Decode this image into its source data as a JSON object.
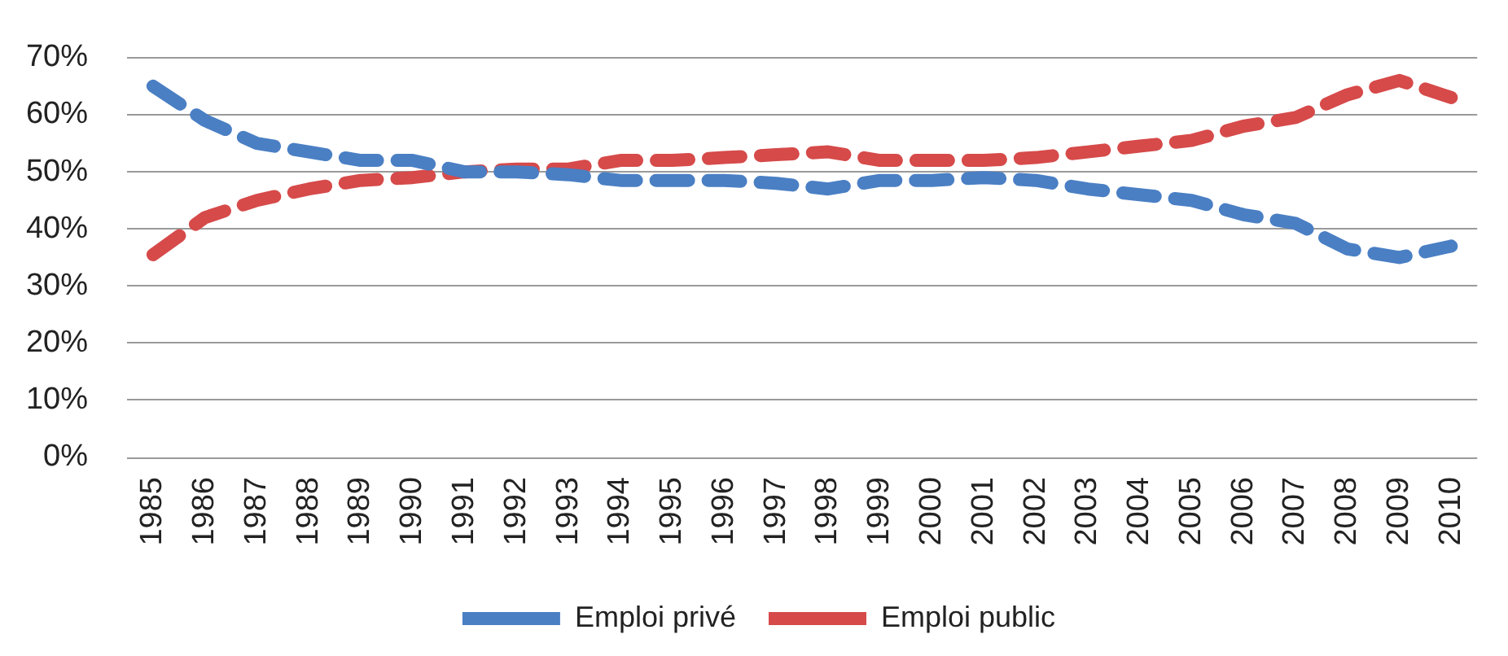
{
  "chart_data": {
    "type": "line",
    "categories": [
      "1985",
      "1986",
      "1987",
      "1988",
      "1989",
      "1990",
      "1991",
      "1992",
      "1993",
      "1994",
      "1995",
      "1996",
      "1997",
      "1998",
      "1999",
      "2000",
      "2001",
      "2002",
      "2003",
      "2004",
      "2005",
      "2006",
      "2007",
      "2008",
      "2009",
      "2010"
    ],
    "series": [
      {
        "name": "Emploi privé",
        "color": "#4a7fc4",
        "values": [
          65,
          59,
          55,
          53.5,
          52,
          52,
          50,
          50,
          49.5,
          48.5,
          48.5,
          48.5,
          48,
          47,
          48.5,
          48.5,
          49,
          48.5,
          47,
          46,
          45,
          42.5,
          41,
          36.5,
          35,
          37
        ]
      },
      {
        "name": "Emploi public",
        "color": "#d64a4a",
        "values": [
          35.5,
          42,
          45,
          47,
          48.5,
          49,
          50,
          50.5,
          50.5,
          52,
          52,
          52.5,
          53,
          53.5,
          52,
          52,
          52,
          52.5,
          53.5,
          54.5,
          55.5,
          58,
          59.5,
          63.5,
          66,
          63
        ]
      }
    ],
    "ylim": [
      0,
      70
    ],
    "yticks": [
      {
        "value": 0,
        "label": "0%"
      },
      {
        "value": 10,
        "label": "10%"
      },
      {
        "value": 20,
        "label": "20%"
      },
      {
        "value": 30,
        "label": "30%"
      },
      {
        "value": 40,
        "label": "40%"
      },
      {
        "value": 50,
        "label": "50%"
      },
      {
        "value": 60,
        "label": "60%"
      },
      {
        "value": 70,
        "label": "70%"
      }
    ],
    "grid": "y",
    "legend": "bottom",
    "marker": "none",
    "line_style": "dashed"
  }
}
